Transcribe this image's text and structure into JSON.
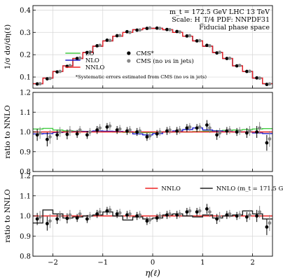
{
  "chart_data": {
    "type": "step-line-with-points",
    "xlabel": "η(ℓ)",
    "xlim": [
      -2.4,
      2.4
    ],
    "x_ticks": [
      -2,
      -1,
      0,
      1,
      2
    ],
    "x_tick_labels": [
      "−2",
      "−1",
      "0",
      "1",
      "2"
    ],
    "bin_edges": [
      -2.4,
      -2.2,
      -2.0,
      -1.8,
      -1.6,
      -1.4,
      -1.2,
      -1.0,
      -0.8,
      -0.6,
      -0.4,
      -0.2,
      0.0,
      0.2,
      0.4,
      0.6,
      0.8,
      1.0,
      1.2,
      1.4,
      1.6,
      1.8,
      2.0,
      2.2,
      2.4
    ],
    "point_x": [
      -2.3,
      -2.1,
      -1.9,
      -1.7,
      -1.5,
      -1.3,
      -1.1,
      -0.9,
      -0.7,
      -0.5,
      -0.3,
      -0.1,
      0.1,
      0.3,
      0.5,
      0.7,
      0.9,
      1.1,
      1.3,
      1.5,
      1.7,
      1.9,
      2.1,
      2.3
    ],
    "panels": [
      {
        "id": "top",
        "ylabel": "1/σ dσ/dη(ℓ)",
        "ylim": [
          0.05,
          0.42
        ],
        "y_ticks": [
          0.1,
          0.2,
          0.3,
          0.4
        ],
        "y_tick_labels": [
          "0.1",
          "0.2",
          "0.3",
          "0.4"
        ],
        "annotations": [
          "m_t = 172.5 GeV LHC 13 TeV",
          "Scale: H_T/4 PDF: NNPDF31",
          "Fiducial phase space"
        ],
        "footnote": "*Systematic errors estimated from CMS (no νs in jets)",
        "series": [
          {
            "name": "LO",
            "color": "#44cc44",
            "kind": "step",
            "values": [
              0.07,
              0.095,
              0.125,
              0.15,
              0.183,
              0.21,
              0.238,
              0.262,
              0.283,
              0.3,
              0.312,
              0.318,
              0.318,
              0.312,
              0.3,
              0.283,
              0.262,
              0.238,
              0.21,
              0.183,
              0.15,
              0.125,
              0.095,
              0.07
            ]
          },
          {
            "name": "NLO",
            "color": "#1f1fcc",
            "kind": "step",
            "values": [
              0.07,
              0.095,
              0.125,
              0.15,
              0.183,
              0.21,
              0.238,
              0.262,
              0.283,
              0.3,
              0.312,
              0.318,
              0.318,
              0.312,
              0.3,
              0.283,
              0.262,
              0.238,
              0.21,
              0.183,
              0.15,
              0.125,
              0.095,
              0.07
            ]
          },
          {
            "name": "NNLO",
            "color": "#ee2222",
            "kind": "step",
            "values": [
              0.07,
              0.095,
              0.125,
              0.15,
              0.183,
              0.21,
              0.238,
              0.262,
              0.283,
              0.3,
              0.312,
              0.318,
              0.318,
              0.312,
              0.3,
              0.283,
              0.262,
              0.238,
              0.21,
              0.183,
              0.15,
              0.125,
              0.095,
              0.07
            ]
          },
          {
            "name": "CMS*",
            "color": "#000000",
            "kind": "points",
            "values": [
              0.069,
              0.092,
              0.123,
              0.148,
              0.183,
              0.21,
              0.24,
              0.265,
              0.285,
              0.303,
              0.31,
              0.318,
              0.319,
              0.313,
              0.304,
              0.284,
              0.262,
              0.242,
              0.208,
              0.183,
              0.15,
              0.125,
              0.096,
              0.067
            ]
          },
          {
            "name": "CMS (no νs in jets)",
            "color": "#888888",
            "kind": "points",
            "values": [
              0.07,
              0.094,
              0.125,
              0.151,
              0.185,
              0.212,
              0.242,
              0.264,
              0.286,
              0.3,
              0.311,
              0.32,
              0.318,
              0.312,
              0.302,
              0.285,
              0.263,
              0.24,
              0.211,
              0.184,
              0.152,
              0.126,
              0.095,
              0.069
            ]
          }
        ]
      },
      {
        "id": "middle",
        "ylabel": "ratio to NNLO",
        "ylim": [
          0.8,
          1.2
        ],
        "y_ticks": [
          0.8,
          0.9,
          1.0,
          1.1,
          1.2
        ],
        "y_tick_labels": [
          "0.8",
          "0.9",
          "1.0",
          "1.1",
          "1.2"
        ],
        "series": [
          {
            "name": "LO",
            "color": "#44cc44",
            "kind": "step",
            "values": [
              1.015,
              1.018,
              1.01,
              1.006,
              1.004,
              1.003,
              1.002,
              1.001,
              1.0,
              0.998,
              0.997,
              0.996,
              0.998,
              1.0,
              1.0,
              1.0,
              1.002,
              1.004,
              1.006,
              1.008,
              1.01,
              1.012,
              1.015,
              1.017
            ]
          },
          {
            "name": "NLO",
            "color": "#1f1fcc",
            "kind": "step",
            "values": [
              0.99,
              0.992,
              0.997,
              1.0,
              1.002,
              1.003,
              1.005,
              1.004,
              1.003,
              1.001,
              0.99,
              0.985,
              0.992,
              1.0,
              1.005,
              1.012,
              1.02,
              1.01,
              1.005,
              1.002,
              1.0,
              1.0,
              0.995,
              0.992
            ]
          },
          {
            "name": "NNLO",
            "color": "#ee2222",
            "kind": "step",
            "values": [
              1,
              1,
              1,
              1,
              1,
              1,
              1,
              1,
              1,
              1,
              1,
              1,
              1,
              1,
              1,
              1,
              1,
              1,
              1,
              1,
              1,
              1,
              1,
              1
            ]
          },
          {
            "name": "CMS*",
            "color": "#000000",
            "kind": "points",
            "values": [
              0.985,
              0.962,
              0.985,
              0.988,
              0.99,
              0.985,
              1.01,
              1.025,
              1.01,
              1.005,
              1.0,
              0.975,
              0.99,
              1.005,
              1.005,
              1.02,
              1.02,
              1.035,
              0.985,
              1.005,
              1.0,
              0.995,
              1.0,
              0.945
            ],
            "errors": [
              0.03,
              0.035,
              0.025,
              0.025,
              0.02,
              0.02,
              0.02,
              0.02,
              0.02,
              0.02,
              0.02,
              0.02,
              0.02,
              0.02,
              0.02,
              0.02,
              0.02,
              0.025,
              0.025,
              0.02,
              0.02,
              0.025,
              0.03,
              0.04
            ]
          },
          {
            "name": "CMS (no νs in jets)",
            "color": "#888888",
            "kind": "points",
            "values": [
              0.995,
              0.975,
              1.0,
              1.005,
              1.01,
              1.0,
              1.02,
              1.03,
              1.015,
              1.01,
              1.005,
              0.98,
              1.0,
              1.01,
              1.01,
              1.025,
              1.025,
              1.02,
              0.995,
              1.01,
              1.005,
              1.005,
              1.02,
              0.965
            ],
            "errors": [
              0.03,
              0.035,
              0.025,
              0.025,
              0.02,
              0.02,
              0.02,
              0.02,
              0.02,
              0.02,
              0.02,
              0.02,
              0.02,
              0.02,
              0.02,
              0.02,
              0.02,
              0.025,
              0.025,
              0.02,
              0.02,
              0.025,
              0.03,
              0.04
            ]
          }
        ]
      },
      {
        "id": "bottom",
        "ylabel": "ratio to NNLO",
        "ylim": [
          0.8,
          1.2
        ],
        "y_ticks": [
          0.8,
          0.9,
          1.0,
          1.1,
          1.2
        ],
        "y_tick_labels": [
          "0.8",
          "0.9",
          "1.0",
          "1.1",
          "1.2"
        ],
        "series": [
          {
            "name": "NNLO",
            "color": "#ee2222",
            "kind": "step",
            "values": [
              1,
              1,
              1,
              1,
              1,
              1,
              1,
              1,
              1,
              1,
              1,
              1,
              1,
              1,
              1,
              1,
              1,
              1,
              1,
              1,
              1,
              1,
              1,
              1
            ]
          },
          {
            "name": "NNLO (m_t = 171.5 GeV)",
            "color": "#222222",
            "kind": "step",
            "values": [
              0.965,
              1.03,
              1.01,
              0.99,
              0.995,
              1.0,
              1.005,
              1.02,
              1.0,
              0.98,
              0.995,
              0.985,
              0.99,
              1.005,
              1.01,
              1.0,
              0.995,
              1.005,
              0.99,
              1.0,
              1.005,
              1.025,
              1.01,
              0.985
            ]
          },
          {
            "name": "CMS*",
            "color": "#000000",
            "kind": "points",
            "values": [
              0.985,
              0.962,
              0.985,
              0.988,
              0.99,
              0.985,
              1.01,
              1.025,
              1.01,
              1.005,
              1.0,
              0.975,
              0.99,
              1.005,
              1.005,
              1.02,
              1.02,
              1.035,
              0.985,
              1.005,
              1.0,
              0.995,
              1.0,
              0.945
            ],
            "errors": [
              0.03,
              0.035,
              0.025,
              0.025,
              0.02,
              0.02,
              0.02,
              0.02,
              0.02,
              0.02,
              0.02,
              0.02,
              0.02,
              0.02,
              0.02,
              0.02,
              0.02,
              0.025,
              0.025,
              0.02,
              0.02,
              0.025,
              0.03,
              0.04
            ]
          },
          {
            "name": "CMS (no νs in jets)",
            "color": "#888888",
            "kind": "points",
            "values": [
              0.995,
              0.975,
              1.0,
              1.005,
              1.01,
              1.0,
              1.02,
              1.03,
              1.015,
              1.01,
              1.005,
              0.98,
              1.0,
              1.01,
              1.01,
              1.025,
              1.025,
              1.02,
              0.995,
              1.01,
              1.005,
              1.005,
              1.02,
              0.965
            ],
            "errors": [
              0.03,
              0.035,
              0.025,
              0.025,
              0.02,
              0.02,
              0.02,
              0.02,
              0.02,
              0.02,
              0.02,
              0.02,
              0.02,
              0.02,
              0.02,
              0.02,
              0.02,
              0.025,
              0.025,
              0.02,
              0.02,
              0.025,
              0.03,
              0.04
            ]
          }
        ]
      }
    ],
    "legends": {
      "top": [
        {
          "label": "LO",
          "color": "#44cc44",
          "kind": "line"
        },
        {
          "label": "NLO",
          "color": "#1f1fcc",
          "kind": "line"
        },
        {
          "label": "NNLO",
          "color": "#ee2222",
          "kind": "line"
        },
        {
          "label": "CMS*",
          "color": "#000000",
          "kind": "point"
        },
        {
          "label": "CMS (no νs in jets)",
          "color": "#888888",
          "kind": "point"
        }
      ],
      "bottom": [
        {
          "label": "NNLO",
          "color": "#ee2222",
          "kind": "line"
        },
        {
          "label": "NNLO (m_t = 171.5 GeV)",
          "color": "#222222",
          "kind": "line"
        }
      ]
    },
    "grid": true
  }
}
